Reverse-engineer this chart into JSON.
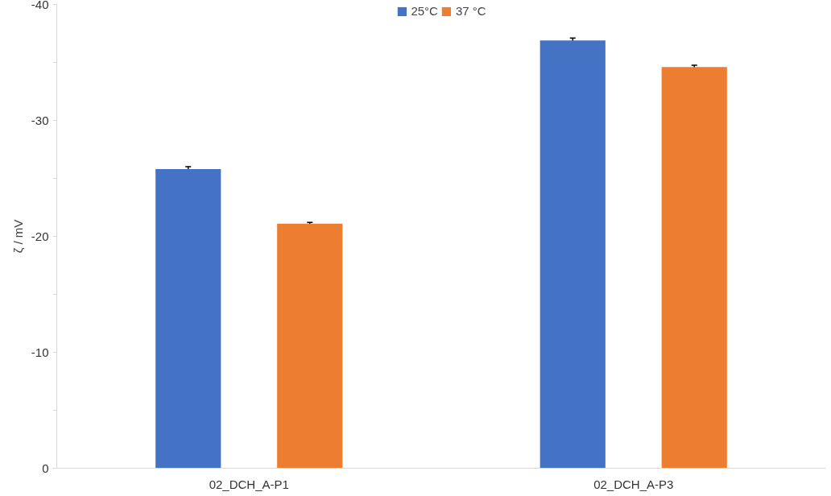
{
  "chart_data": {
    "type": "bar",
    "ylabel": "ζ / mV",
    "categories": [
      "02_DCH_A-P1",
      "02_DCH_A-P3"
    ],
    "series": [
      {
        "name": "25°C",
        "color": "#4472c4",
        "values": [
          -25.8,
          -36.9
        ],
        "errors": [
          0.2,
          0.2
        ]
      },
      {
        "name": "37 °C",
        "color": "#ed7d31",
        "values": [
          -21.1,
          -34.6
        ],
        "errors": [
          0.1,
          0.15
        ]
      }
    ],
    "ylim": [
      0,
      -40
    ],
    "yticks": [
      0,
      {
        "value": -5,
        "label": null
      },
      -10,
      {
        "value": -15,
        "label": null
      },
      -20,
      {
        "value": -25,
        "label": null
      },
      -30,
      {
        "value": -35,
        "label": null
      },
      -40
    ],
    "grid": false,
    "legend": "top"
  }
}
